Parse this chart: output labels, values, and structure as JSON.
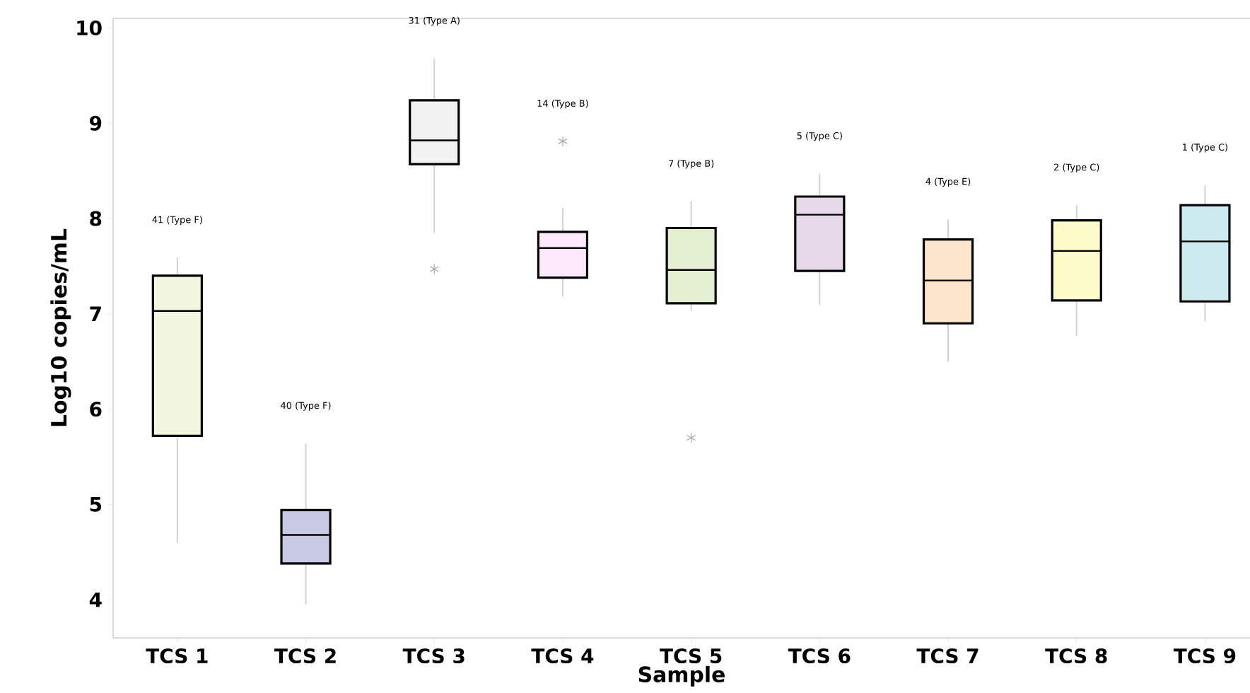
{
  "chart_data": {
    "type": "box",
    "xlabel": "Sample",
    "ylabel": "Log10 copies/mL",
    "categories": [
      "TCS 1",
      "TCS 2",
      "TCS 3",
      "TCS 4",
      "TCS 5",
      "TCS 6",
      "TCS 7",
      "TCS 8",
      "TCS 9"
    ],
    "boxes": [
      {
        "low": 4.6,
        "q1": 5.72,
        "median": 7.03,
        "q3": 7.4,
        "high": 7.59
      },
      {
        "low": 3.95,
        "q1": 4.38,
        "median": 4.68,
        "q3": 4.94,
        "high": 5.64
      },
      {
        "low": 7.85,
        "q1": 8.57,
        "median": 8.82,
        "q3": 9.24,
        "high": 9.68,
        "outliers": [
          7.47
        ]
      },
      {
        "low": 7.18,
        "q1": 7.38,
        "median": 7.69,
        "q3": 7.86,
        "high": 8.11,
        "outliers": [
          8.81
        ]
      },
      {
        "low": 7.03,
        "q1": 7.11,
        "median": 7.46,
        "q3": 7.9,
        "high": 8.18,
        "outliers": [
          5.7
        ]
      },
      {
        "low": 7.09,
        "q1": 7.45,
        "median": 8.04,
        "q3": 8.23,
        "high": 8.47
      },
      {
        "low": 6.5,
        "q1": 6.9,
        "median": 7.35,
        "q3": 7.78,
        "high": 7.99
      },
      {
        "low": 6.77,
        "q1": 7.14,
        "median": 7.66,
        "q3": 7.98,
        "high": 8.14
      },
      {
        "low": 6.92,
        "q1": 7.13,
        "median": 7.76,
        "q3": 8.14,
        "high": 8.35
      }
    ],
    "colors": [
      "#f3f6df",
      "#c8c9e3",
      "#f2f2f2",
      "#fde9fb",
      "#e3efcf",
      "#e7d9ea",
      "#fbe5cb",
      "#fefccb",
      "#cdeaee"
    ],
    "ylim": [
      3.6,
      10.1
    ],
    "yticks": [
      4,
      5,
      6,
      7,
      8,
      9,
      10
    ],
    "grid": false,
    "annotations": [
      "41 (Type F)",
      "40 (Type F)",
      "31 (Type A)",
      "14 (Type B)",
      "7 (Type B)",
      "5 (Type C)",
      "4 (Type E)",
      "2 (Type C)",
      "1 (Type C)"
    ]
  }
}
